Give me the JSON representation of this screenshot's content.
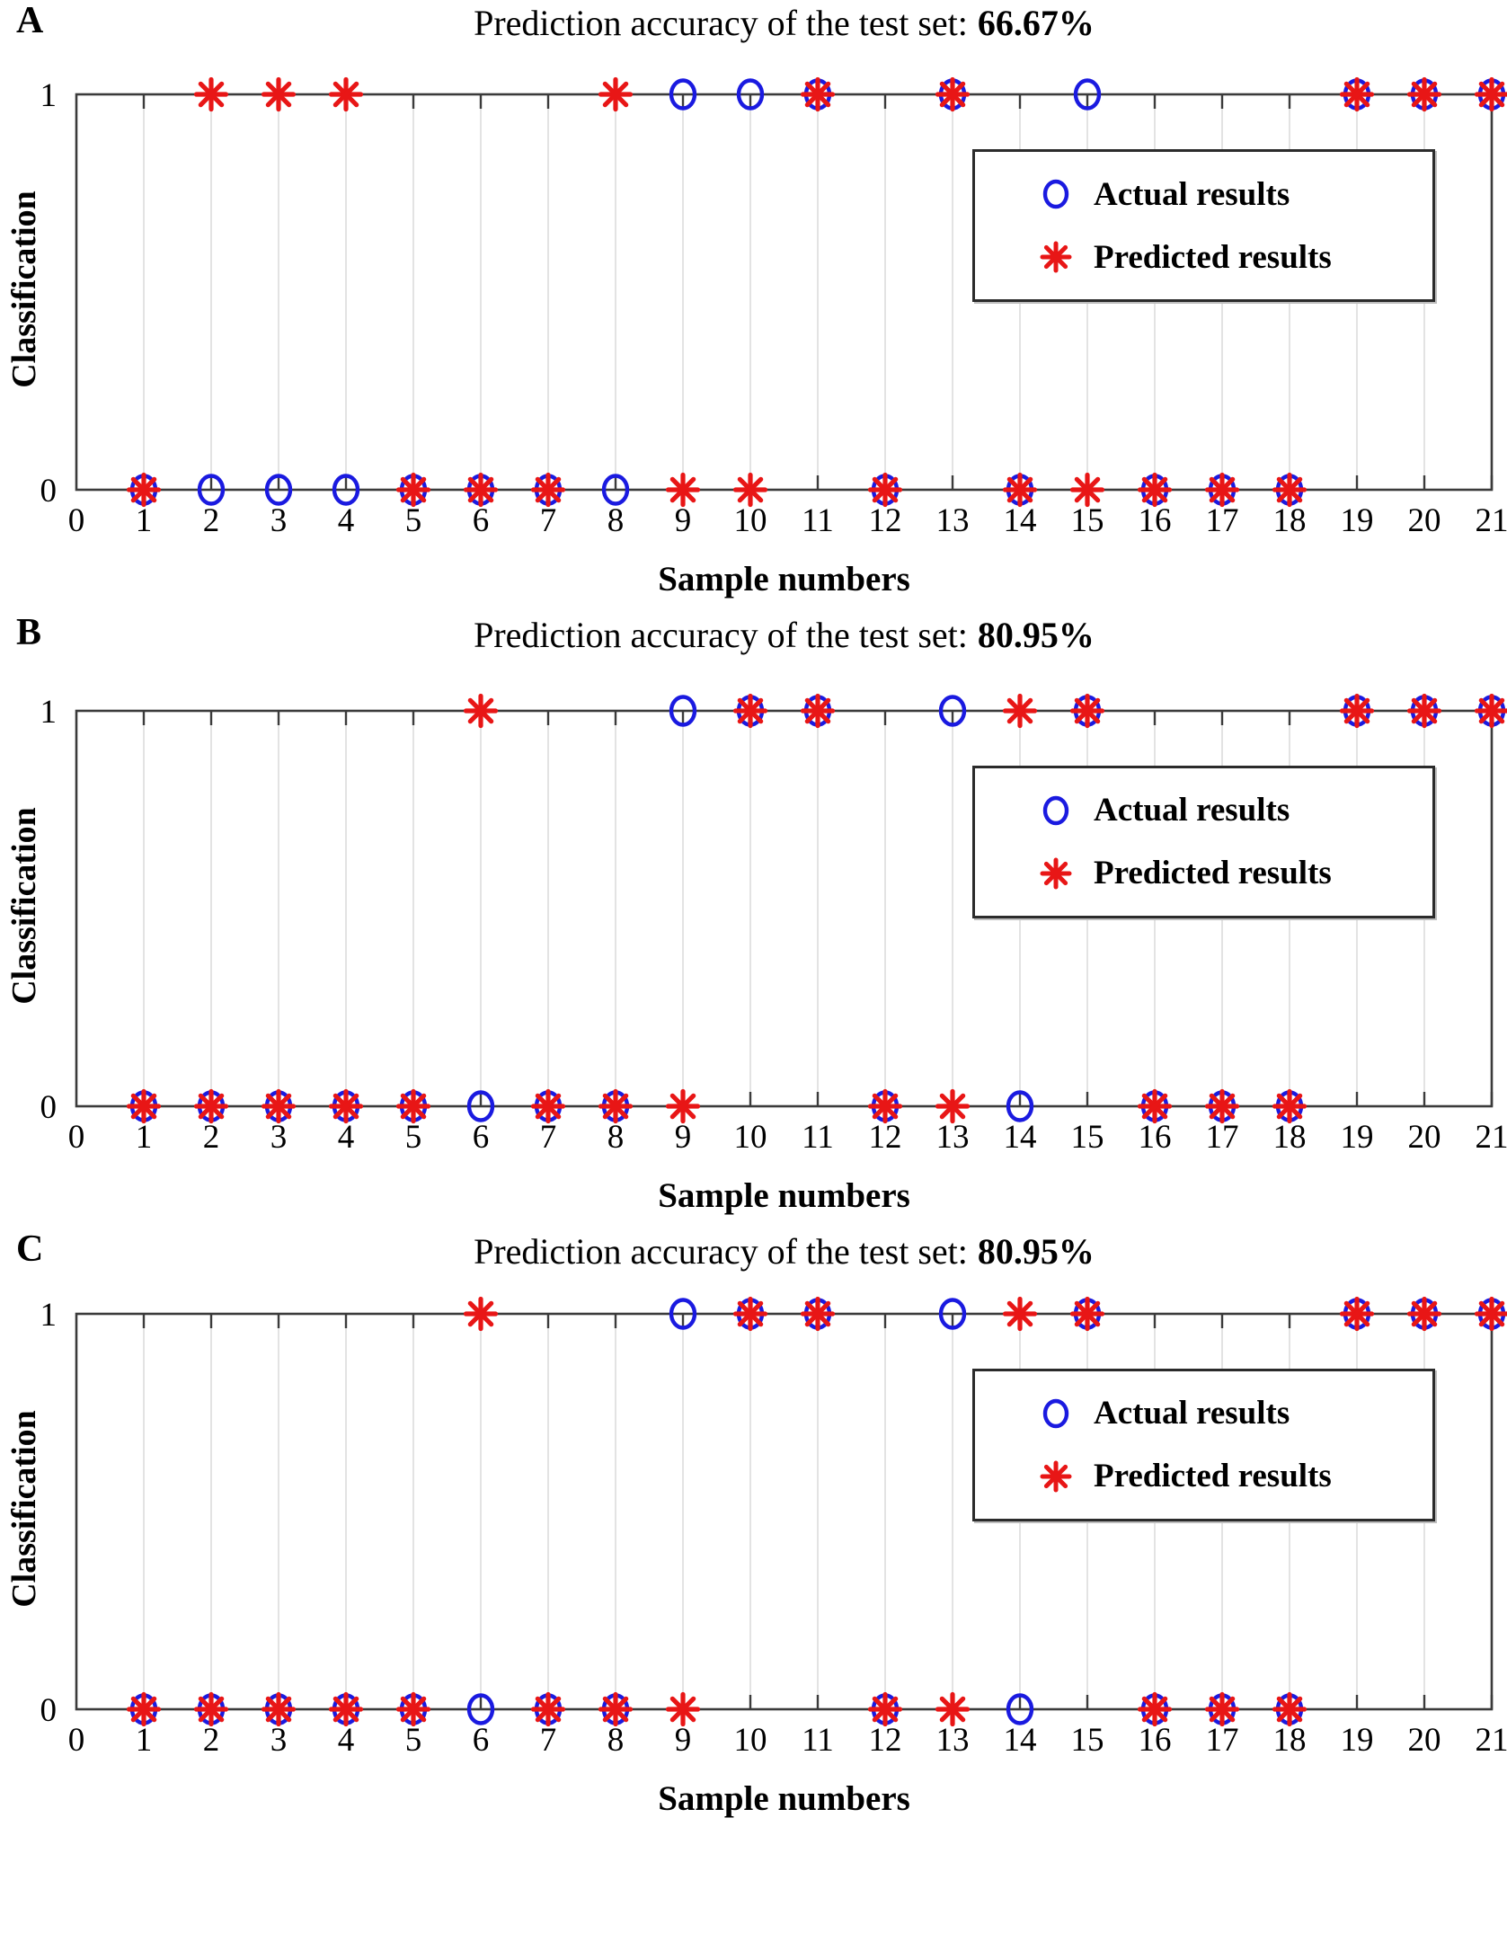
{
  "colors": {
    "actual": "#1a1ae0",
    "predicted": "#e81616",
    "axis": "#3b3b3b",
    "grid": "#dcdcdc",
    "text": "#000000",
    "legend_border": "#2b2b2b",
    "background": "#ffffff"
  },
  "chart_data": [
    {
      "panel_label": "A",
      "type": "scatter",
      "title": "Prediction accuracy of the test set: 66.67%",
      "title_prefix": "Prediction accuracy of the test set:",
      "accuracy": "66.67%",
      "xlabel": "Sample numbers",
      "ylabel": "Classification",
      "xlim": [
        0,
        21
      ],
      "ylim": [
        0,
        1
      ],
      "x_ticks": [
        0,
        1,
        2,
        3,
        4,
        5,
        6,
        7,
        8,
        9,
        10,
        11,
        12,
        13,
        14,
        15,
        16,
        17,
        18,
        19,
        20,
        21
      ],
      "y_ticks": [
        0,
        1
      ],
      "grid": "vertical",
      "legend_position": "upper right",
      "x": [
        1,
        2,
        3,
        4,
        5,
        6,
        7,
        8,
        9,
        10,
        11,
        12,
        13,
        14,
        15,
        16,
        17,
        18,
        19,
        20,
        21
      ],
      "series": [
        {
          "name": "Actual results",
          "marker": "circle",
          "color": "#1a1ae0",
          "values": [
            0,
            0,
            0,
            0,
            0,
            0,
            0,
            0,
            1,
            1,
            1,
            0,
            1,
            0,
            1,
            0,
            0,
            0,
            1,
            1,
            1
          ]
        },
        {
          "name": "Predicted results",
          "marker": "asterisk",
          "color": "#e81616",
          "values": [
            0,
            1,
            1,
            1,
            0,
            0,
            0,
            1,
            0,
            0,
            1,
            0,
            1,
            0,
            0,
            0,
            0,
            0,
            1,
            1,
            1
          ]
        }
      ]
    },
    {
      "panel_label": "B",
      "type": "scatter",
      "title": "Prediction accuracy of the test set: 80.95%",
      "title_prefix": "Prediction accuracy of the test set:",
      "accuracy": "80.95%",
      "xlabel": "Sample numbers",
      "ylabel": "Classification",
      "xlim": [
        0,
        21
      ],
      "ylim": [
        0,
        1
      ],
      "x_ticks": [
        0,
        1,
        2,
        3,
        4,
        5,
        6,
        7,
        8,
        9,
        10,
        11,
        12,
        13,
        14,
        15,
        16,
        17,
        18,
        19,
        20,
        21
      ],
      "y_ticks": [
        0,
        1
      ],
      "grid": "vertical",
      "legend_position": "upper right",
      "x": [
        1,
        2,
        3,
        4,
        5,
        6,
        7,
        8,
        9,
        10,
        11,
        12,
        13,
        14,
        15,
        16,
        17,
        18,
        19,
        20,
        21
      ],
      "series": [
        {
          "name": "Actual results",
          "marker": "circle",
          "color": "#1a1ae0",
          "values": [
            0,
            0,
            0,
            0,
            0,
            0,
            0,
            0,
            1,
            1,
            1,
            0,
            1,
            0,
            1,
            0,
            0,
            0,
            1,
            1,
            1
          ]
        },
        {
          "name": "Predicted results",
          "marker": "asterisk",
          "color": "#e81616",
          "values": [
            0,
            0,
            0,
            0,
            0,
            1,
            0,
            0,
            0,
            1,
            1,
            0,
            0,
            1,
            1,
            0,
            0,
            0,
            1,
            1,
            1
          ]
        }
      ]
    },
    {
      "panel_label": "C",
      "type": "scatter",
      "title": "Prediction accuracy of the test set: 80.95%",
      "title_prefix": "Prediction accuracy of the test set:",
      "accuracy": "80.95%",
      "xlabel": "Sample numbers",
      "ylabel": "Classification",
      "xlim": [
        0,
        21
      ],
      "ylim": [
        0,
        1
      ],
      "x_ticks": [
        0,
        1,
        2,
        3,
        4,
        5,
        6,
        7,
        8,
        9,
        10,
        11,
        12,
        13,
        14,
        15,
        16,
        17,
        18,
        19,
        20,
        21
      ],
      "y_ticks": [
        0,
        1
      ],
      "grid": "vertical",
      "legend_position": "upper right",
      "x": [
        1,
        2,
        3,
        4,
        5,
        6,
        7,
        8,
        9,
        10,
        11,
        12,
        13,
        14,
        15,
        16,
        17,
        18,
        19,
        20,
        21
      ],
      "series": [
        {
          "name": "Actual results",
          "marker": "circle",
          "color": "#1a1ae0",
          "values": [
            0,
            0,
            0,
            0,
            0,
            0,
            0,
            0,
            1,
            1,
            1,
            0,
            1,
            0,
            1,
            0,
            0,
            0,
            1,
            1,
            1
          ]
        },
        {
          "name": "Predicted results",
          "marker": "asterisk",
          "color": "#e81616",
          "values": [
            0,
            0,
            0,
            0,
            0,
            1,
            0,
            0,
            0,
            1,
            1,
            0,
            0,
            1,
            1,
            0,
            0,
            0,
            1,
            1,
            1
          ]
        }
      ]
    }
  ]
}
